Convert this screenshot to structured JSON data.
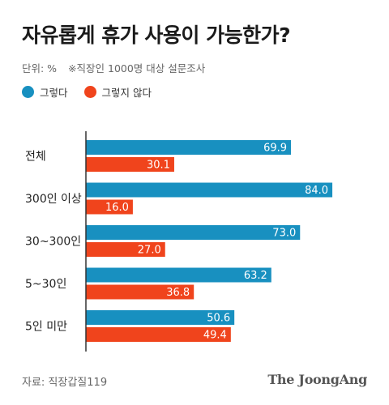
{
  "header": {
    "title": "자유롭게 휴가 사용이 가능한가?",
    "unit": "단위: %",
    "note": "※직장인 1000명 대상 설문조사"
  },
  "colors": {
    "yes": "#1890c0",
    "no": "#f0441c",
    "axis": "#333333",
    "label_text": "#ffffff"
  },
  "chart_data": {
    "type": "bar",
    "orientation": "horizontal",
    "categories": [
      "전체",
      "300인 이상",
      "30~300인",
      "5~30인",
      "5인 미만"
    ],
    "series": [
      {
        "name": "그렇다",
        "values": [
          69.9,
          84.0,
          73.0,
          63.2,
          50.6
        ]
      },
      {
        "name": "그렇지 않다",
        "values": [
          30.1,
          16.0,
          27.0,
          36.8,
          49.4
        ]
      }
    ],
    "value_labels": [
      [
        "69.9",
        "84.0",
        "73.0",
        "63.2",
        "50.6"
      ],
      [
        "30.1",
        "16.0",
        "27.0",
        "36.8",
        "49.4"
      ]
    ],
    "xlim": [
      0,
      100
    ],
    "grid": false,
    "legend": "top-left"
  },
  "footer": {
    "source": "자료: 직장갑질119",
    "brand": "The JoongAng"
  }
}
